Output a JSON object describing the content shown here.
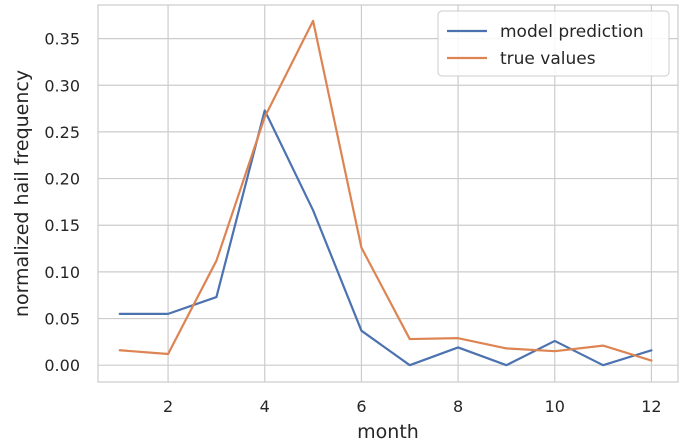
{
  "chart_data": {
    "type": "line",
    "xlabel": "month",
    "ylabel": "normalized hail frequency",
    "xlim": [
      0.55,
      12.55
    ],
    "ylim": [
      -0.018,
      0.386
    ],
    "xticks": [
      2,
      4,
      6,
      8,
      10,
      12
    ],
    "yticks": [
      0.0,
      0.05,
      0.1,
      0.15,
      0.2,
      0.25,
      0.3,
      0.35
    ],
    "xtick_labels": [
      "2",
      "4",
      "6",
      "8",
      "10",
      "12"
    ],
    "ytick_labels": [
      "0.00",
      "0.05",
      "0.10",
      "0.15",
      "0.20",
      "0.25",
      "0.30",
      "0.35"
    ],
    "grid": true,
    "legend_position": "top-right",
    "x": [
      1,
      2,
      3,
      4,
      5,
      6,
      7,
      8,
      9,
      10,
      11,
      12
    ],
    "series": [
      {
        "name": "model prediction",
        "color": "#4c72b0",
        "values": [
          0.055,
          0.055,
          0.073,
          0.273,
          0.166,
          0.037,
          0.0,
          0.019,
          0.0,
          0.026,
          0.0,
          0.016
        ]
      },
      {
        "name": "true values",
        "color": "#dd8452",
        "values": [
          0.016,
          0.012,
          0.112,
          0.266,
          0.369,
          0.126,
          0.028,
          0.029,
          0.018,
          0.015,
          0.021,
          0.005
        ]
      }
    ]
  }
}
